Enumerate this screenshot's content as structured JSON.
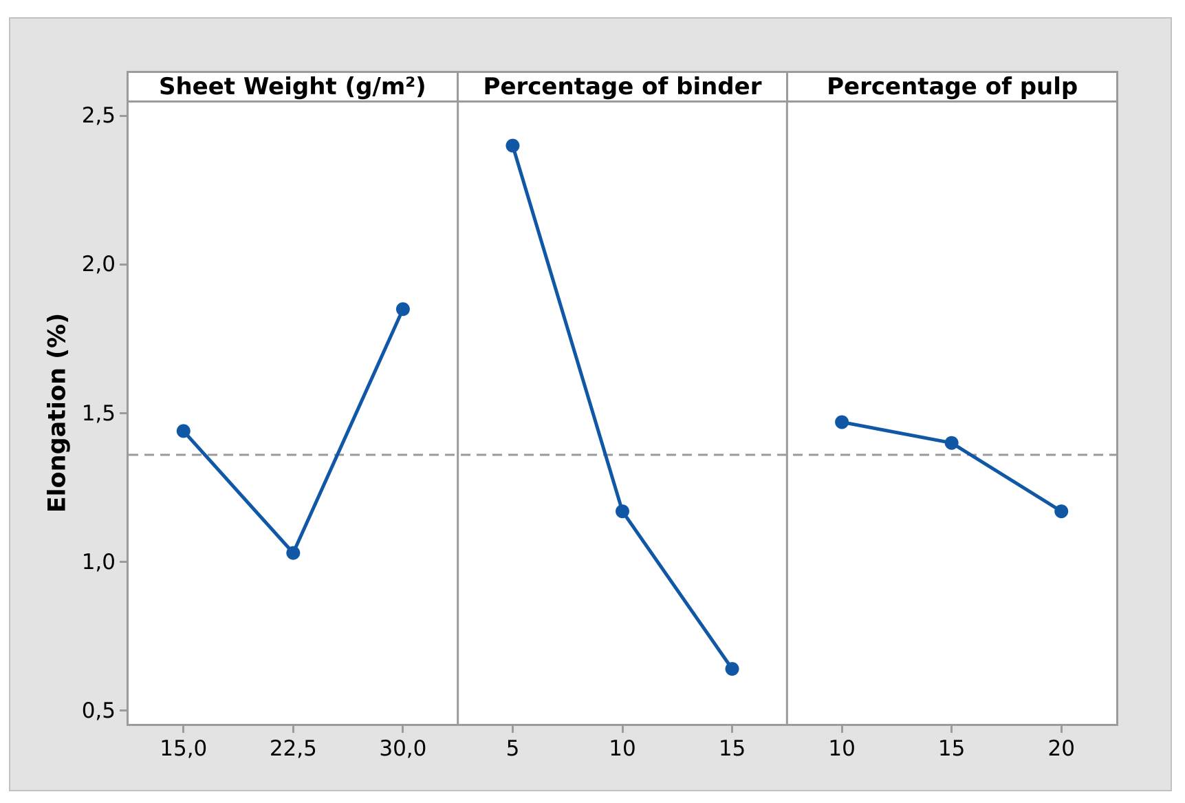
{
  "chart_data": {
    "type": "line",
    "title": "",
    "ylabel": "Elongation (%)",
    "ylim": [
      0.455,
      2.545
    ],
    "grid": "off",
    "legend": "none",
    "decimal_separator": ",",
    "yticks": [
      {
        "value": 0.5,
        "label": "0,5"
      },
      {
        "value": 1.0,
        "label": "1,0"
      },
      {
        "value": 1.5,
        "label": "1,5"
      },
      {
        "value": 2.0,
        "label": "2,0"
      },
      {
        "value": 2.5,
        "label": "2,5"
      }
    ],
    "reference_line": {
      "value": 1.36,
      "style": "dashed"
    },
    "panels": [
      {
        "title": "Sheet Weight (g/m²)",
        "categories": [
          "15,0",
          "22,5",
          "30,0"
        ],
        "values": [
          1.44,
          1.03,
          1.85
        ]
      },
      {
        "title": "Percentage of binder",
        "categories": [
          "5",
          "10",
          "15"
        ],
        "values": [
          2.4,
          1.17,
          0.64
        ]
      },
      {
        "title": "Percentage of pulp",
        "categories": [
          "10",
          "15",
          "20"
        ],
        "values": [
          1.47,
          1.4,
          1.17
        ]
      }
    ]
  },
  "colors": {
    "series_blue": "#1057a5",
    "figure_bg": "#e3e3e3",
    "panel_bg": "#ffffff",
    "axis_gray": "#9b9b9b",
    "reference_gray": "#9a9a9a",
    "frame_border": "#c2c2c2",
    "text": "#000000"
  }
}
